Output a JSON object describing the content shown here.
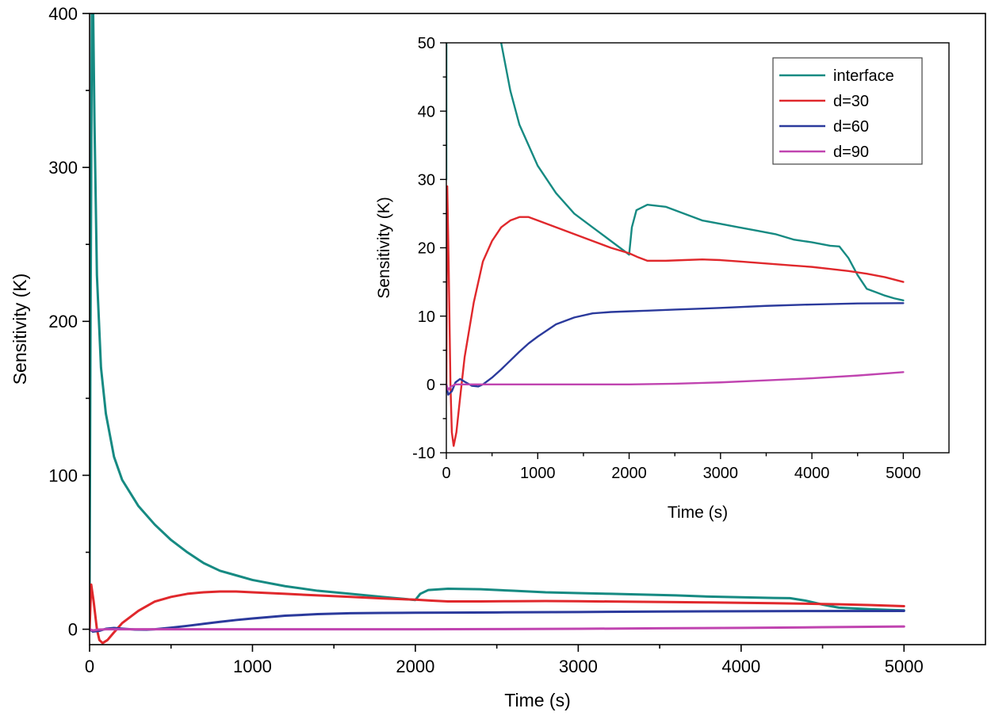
{
  "chart_data": [
    {
      "id": "main",
      "type": "line",
      "title": "",
      "xlabel": "Time (s)",
      "ylabel": "Sensitivity (K)",
      "xlim": [
        0,
        5500
      ],
      "ylim": [
        -10,
        400
      ],
      "xticks": [
        0,
        1000,
        2000,
        3000,
        4000,
        5000
      ],
      "xtick_labels": [
        "0",
        "1000",
        "2000",
        "3000",
        "4000",
        "5000"
      ],
      "yticks": [
        0,
        100,
        200,
        300,
        400
      ],
      "ytick_labels": [
        "0",
        "100",
        "200",
        "300",
        "400"
      ],
      "grid": false,
      "legend": "none",
      "series": [
        {
          "name": "interface",
          "color": "#168a82",
          "points": [
            [
              0,
              30
            ],
            [
              6,
              200
            ],
            [
              10,
              300
            ],
            [
              14,
              400
            ],
            [
              22,
              400
            ],
            [
              30,
              330
            ],
            [
              45,
              230
            ],
            [
              70,
              170
            ],
            [
              100,
              140
            ],
            [
              150,
              112
            ],
            [
              200,
              97
            ],
            [
              300,
              80
            ],
            [
              400,
              68
            ],
            [
              500,
              58
            ],
            [
              600,
              50
            ],
            [
              700,
              43
            ],
            [
              800,
              38
            ],
            [
              900,
              35
            ],
            [
              1000,
              32
            ],
            [
              1200,
              28
            ],
            [
              1400,
              25
            ],
            [
              1600,
              23
            ],
            [
              1800,
              21
            ],
            [
              2000,
              19
            ],
            [
              2030,
              23
            ],
            [
              2080,
              25.5
            ],
            [
              2200,
              26.3
            ],
            [
              2400,
              26
            ],
            [
              2600,
              25
            ],
            [
              2800,
              24
            ],
            [
              3000,
              23.5
            ],
            [
              3200,
              23
            ],
            [
              3400,
              22.5
            ],
            [
              3600,
              22
            ],
            [
              3800,
              21.2
            ],
            [
              4000,
              20.8
            ],
            [
              4200,
              20.3
            ],
            [
              4300,
              20.2
            ],
            [
              4400,
              18.5
            ],
            [
              4500,
              16
            ],
            [
              4600,
              14
            ],
            [
              4700,
              13.5
            ],
            [
              4800,
              13
            ],
            [
              4900,
              12.6
            ],
            [
              5000,
              12.3
            ]
          ]
        },
        {
          "name": "d=30",
          "color": "#e0282c",
          "points": [
            [
              0,
              0
            ],
            [
              10,
              29
            ],
            [
              25,
              18
            ],
            [
              45,
              0
            ],
            [
              60,
              -7
            ],
            [
              80,
              -9
            ],
            [
              110,
              -7
            ],
            [
              150,
              -2
            ],
            [
              200,
              4
            ],
            [
              300,
              12
            ],
            [
              400,
              18
            ],
            [
              500,
              21
            ],
            [
              600,
              23
            ],
            [
              700,
              24
            ],
            [
              800,
              24.5
            ],
            [
              900,
              24.5
            ],
            [
              1000,
              24
            ],
            [
              1200,
              23
            ],
            [
              1400,
              22
            ],
            [
              1600,
              21
            ],
            [
              1800,
              20
            ],
            [
              2000,
              19.2
            ],
            [
              2100,
              18.6
            ],
            [
              2200,
              18.1
            ],
            [
              2400,
              18.1
            ],
            [
              2600,
              18.2
            ],
            [
              2800,
              18.3
            ],
            [
              3000,
              18.2
            ],
            [
              3200,
              18
            ],
            [
              3400,
              17.8
            ],
            [
              3600,
              17.6
            ],
            [
              3800,
              17.4
            ],
            [
              4000,
              17.2
            ],
            [
              4200,
              16.9
            ],
            [
              4400,
              16.6
            ],
            [
              4600,
              16.2
            ],
            [
              4800,
              15.7
            ],
            [
              5000,
              15
            ]
          ]
        },
        {
          "name": "d=60",
          "color": "#2b3a9c",
          "points": [
            [
              0,
              0
            ],
            [
              20,
              -1.5
            ],
            [
              60,
              -1
            ],
            [
              100,
              0.3
            ],
            [
              150,
              0.8
            ],
            [
              200,
              0.4
            ],
            [
              280,
              -0.2
            ],
            [
              350,
              -0.3
            ],
            [
              400,
              0
            ],
            [
              500,
              1
            ],
            [
              600,
              2.2
            ],
            [
              700,
              3.5
            ],
            [
              800,
              4.8
            ],
            [
              900,
              6
            ],
            [
              1000,
              7
            ],
            [
              1200,
              8.8
            ],
            [
              1400,
              9.8
            ],
            [
              1600,
              10.4
            ],
            [
              1800,
              10.6
            ],
            [
              2000,
              10.7
            ],
            [
              2200,
              10.8
            ],
            [
              2500,
              10.95
            ],
            [
              3000,
              11.2
            ],
            [
              3500,
              11.5
            ],
            [
              4000,
              11.7
            ],
            [
              4500,
              11.85
            ],
            [
              5000,
              11.9
            ]
          ]
        },
        {
          "name": "d=90",
          "color": "#c044b0",
          "points": [
            [
              0,
              0
            ],
            [
              20,
              -0.8
            ],
            [
              50,
              -0.3
            ],
            [
              100,
              0
            ],
            [
              200,
              0
            ],
            [
              500,
              0
            ],
            [
              1000,
              0
            ],
            [
              1500,
              0
            ],
            [
              2000,
              0
            ],
            [
              2500,
              0.1
            ],
            [
              3000,
              0.3
            ],
            [
              3500,
              0.6
            ],
            [
              4000,
              0.9
            ],
            [
              4500,
              1.3
            ],
            [
              5000,
              1.8
            ]
          ]
        }
      ]
    },
    {
      "id": "inset",
      "type": "line",
      "title": "",
      "xlabel": "Time (s)",
      "ylabel": "Sensitivity (K)",
      "xlim": [
        0,
        5500
      ],
      "ylim": [
        -10,
        50
      ],
      "xticks": [
        0,
        1000,
        2000,
        3000,
        4000,
        5000
      ],
      "xtick_labels": [
        "0",
        "1000",
        "2000",
        "3000",
        "4000",
        "5000"
      ],
      "yticks": [
        -10,
        0,
        10,
        20,
        30,
        40,
        50
      ],
      "ytick_labels": [
        "-10",
        "0",
        "10",
        "20",
        "30",
        "40",
        "50"
      ],
      "grid": false,
      "legend": "top-right",
      "legend_entries": [
        "interface",
        "d=30",
        "d=60",
        "d=90"
      ],
      "series_ref": "main"
    }
  ]
}
